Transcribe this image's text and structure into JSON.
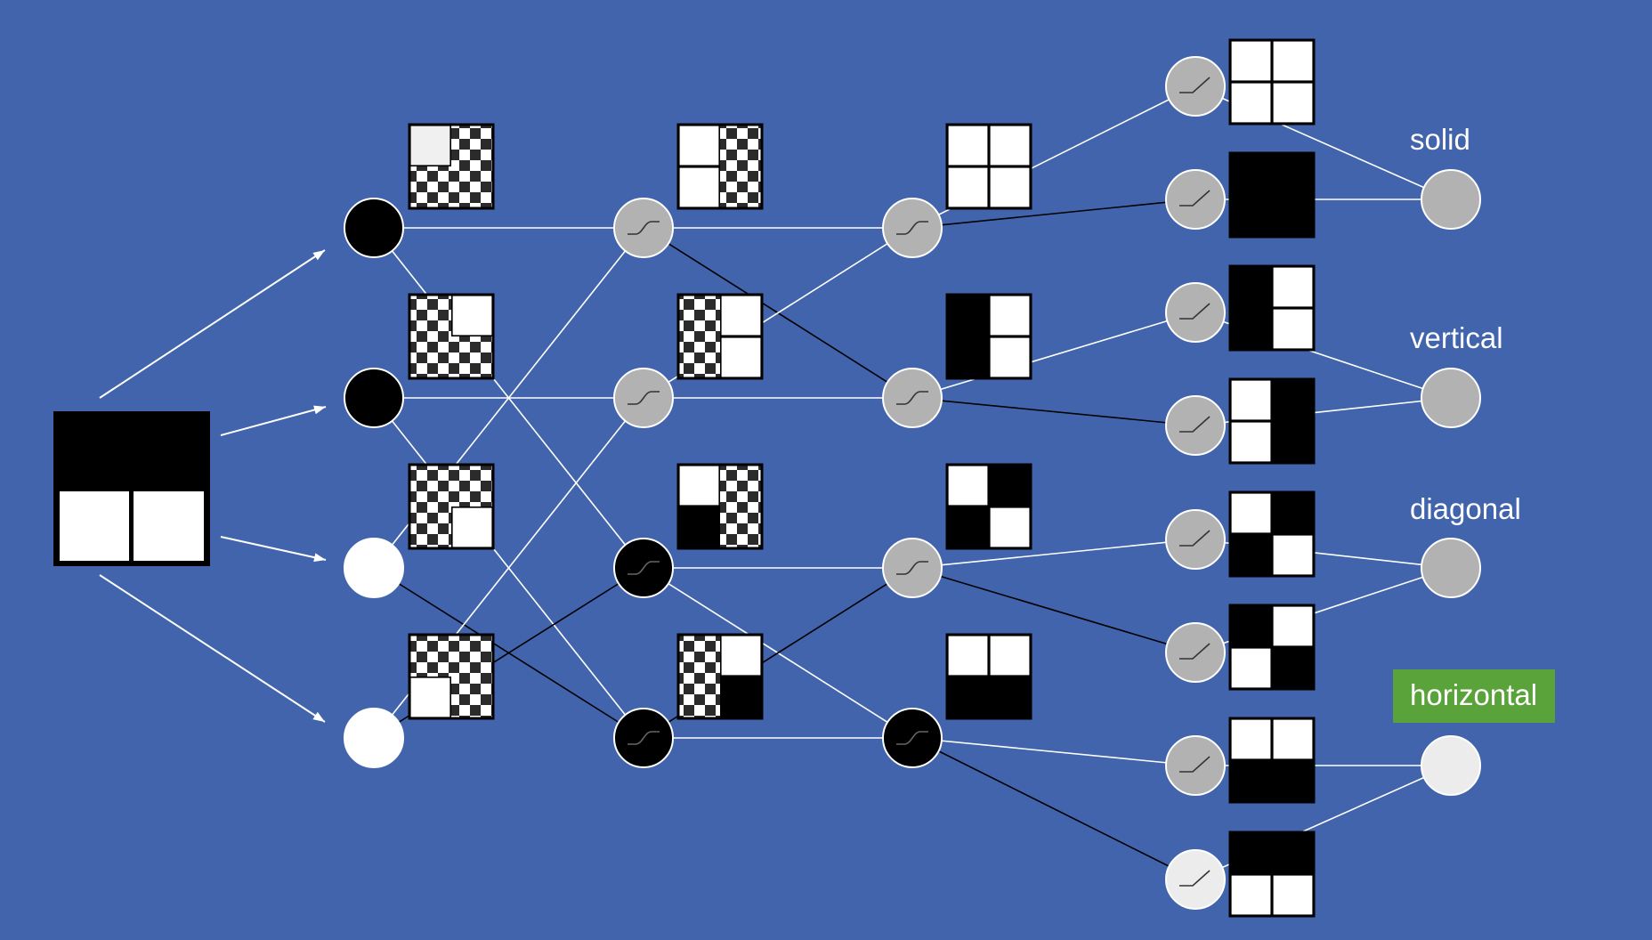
{
  "colors": {
    "background": "#4164ad",
    "node_gray": "#b2b2b2",
    "node_black": "#000000",
    "node_white": "#ffffff",
    "node_light": "#ececec",
    "highlight": "#5aa33a",
    "edge_positive": "#ffffff",
    "edge_negative": "#000000"
  },
  "input": {
    "pattern": "horizontal-bottom-white"
  },
  "layers": [
    {
      "activation": "none",
      "nodes": [
        {
          "fill": "black",
          "pattern": "TL-white"
        },
        {
          "fill": "black",
          "pattern": "TR-white"
        },
        {
          "fill": "white",
          "pattern": "BR-white"
        },
        {
          "fill": "white",
          "pattern": "BL-white"
        }
      ]
    },
    {
      "activation": "sigmoid-icon",
      "nodes": [
        {
          "fill": "gray",
          "pattern": "left-white"
        },
        {
          "fill": "gray",
          "pattern": "right-white"
        },
        {
          "fill": "black",
          "pattern": "TL-white BL-black"
        },
        {
          "fill": "black",
          "pattern": "TR-white BR-black"
        }
      ]
    },
    {
      "activation": "sigmoid-icon",
      "nodes": [
        {
          "fill": "gray",
          "pattern": "all-white"
        },
        {
          "fill": "gray",
          "pattern": "vertical-left-black"
        },
        {
          "fill": "gray",
          "pattern": "diagonal"
        },
        {
          "fill": "black",
          "pattern": "horizontal-bottom-black"
        }
      ]
    },
    {
      "activation": "relu-icon",
      "nodes": [
        {
          "fill": "gray",
          "pattern": "all-white"
        },
        {
          "fill": "gray",
          "pattern": "all-black"
        },
        {
          "fill": "gray",
          "pattern": "vertical-left-black"
        },
        {
          "fill": "gray",
          "pattern": "vertical-right-black"
        },
        {
          "fill": "gray",
          "pattern": "diagonal-a"
        },
        {
          "fill": "gray",
          "pattern": "diagonal-b"
        },
        {
          "fill": "gray",
          "pattern": "horizontal-bottom-black"
        },
        {
          "fill": "light",
          "pattern": "horizontal-top-black"
        }
      ]
    }
  ],
  "outputs": [
    {
      "label": "solid",
      "fill": "gray",
      "highlighted": false
    },
    {
      "label": "vertical",
      "fill": "gray",
      "highlighted": false
    },
    {
      "label": "diagonal",
      "fill": "gray",
      "highlighted": false
    },
    {
      "label": "horizontal",
      "fill": "light",
      "highlighted": true
    }
  ]
}
